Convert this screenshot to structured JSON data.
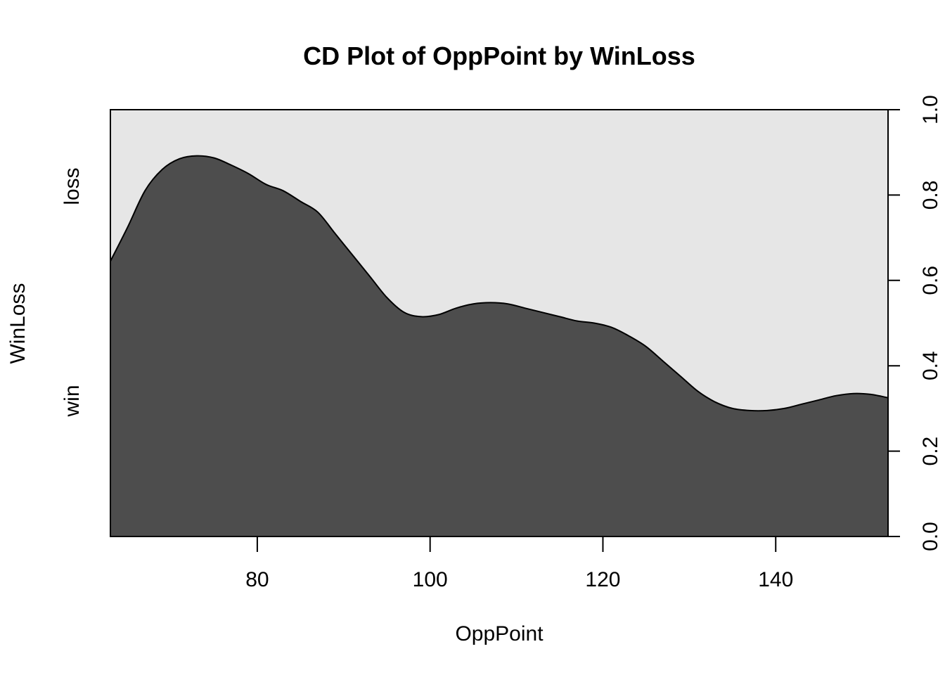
{
  "chart_data": {
    "type": "area",
    "subtype": "conditional-density",
    "title": "CD Plot of OppPoint by WinLoss",
    "xlabel": "OppPoint",
    "ylabel": "WinLoss",
    "xlim": [
      63,
      153
    ],
    "ylim": [
      0,
      1
    ],
    "x_ticks": [
      80,
      100,
      120,
      140
    ],
    "x_tick_labels": [
      "80",
      "100",
      "120",
      "140"
    ],
    "right_ticks": [
      0,
      0.2,
      0.4,
      0.6,
      0.8,
      1
    ],
    "right_tick_labels": [
      "0.0",
      "0.2",
      "0.4",
      "0.6",
      "0.8",
      "1.0"
    ],
    "categories": [
      "win",
      "loss"
    ],
    "colors": {
      "win": "#4d4d4d",
      "loss": "#e6e6e6",
      "outline": "#000000"
    },
    "grid": false,
    "boundary": {
      "x": [
        63,
        65,
        67,
        69,
        71,
        73,
        75,
        77,
        79,
        81,
        83,
        85,
        87,
        89,
        91,
        93,
        95,
        97,
        99,
        101,
        103,
        105,
        107,
        109,
        111,
        113,
        115,
        117,
        119,
        121,
        123,
        125,
        127,
        129,
        131,
        133,
        135,
        137,
        139,
        141,
        143,
        145,
        147,
        149,
        151,
        153
      ],
      "y": [
        0.645,
        0.725,
        0.81,
        0.86,
        0.885,
        0.892,
        0.887,
        0.87,
        0.85,
        0.825,
        0.81,
        0.785,
        0.76,
        0.71,
        0.66,
        0.61,
        0.56,
        0.525,
        0.515,
        0.52,
        0.535,
        0.545,
        0.548,
        0.545,
        0.535,
        0.525,
        0.515,
        0.505,
        0.5,
        0.49,
        0.47,
        0.445,
        0.41,
        0.375,
        0.34,
        0.315,
        0.3,
        0.295,
        0.295,
        0.3,
        0.31,
        0.32,
        0.33,
        0.335,
        0.333,
        0.325
      ]
    }
  }
}
